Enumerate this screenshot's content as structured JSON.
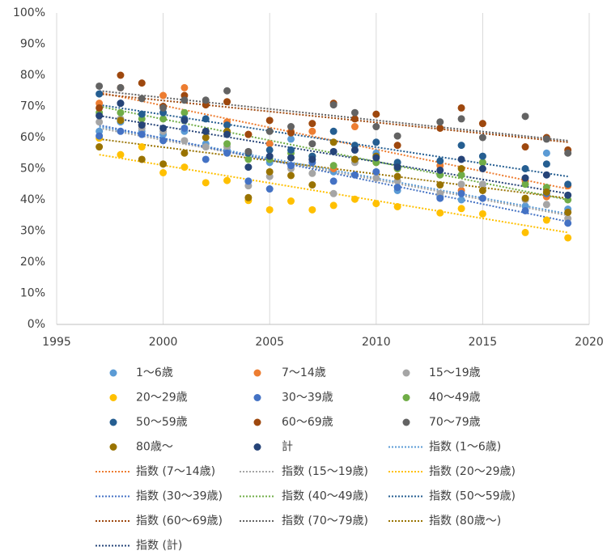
{
  "chart_data": {
    "type": "scatter",
    "x": [
      1997,
      1998,
      1999,
      2000,
      2001,
      2002,
      2003,
      2004,
      2005,
      2006,
      2007,
      2008,
      2009,
      2010,
      2011,
      2013,
      2014,
      2015,
      2017,
      2018,
      2019
    ],
    "xlim": [
      1995,
      2020
    ],
    "xticks": [
      1995,
      2000,
      2005,
      2010,
      2015,
      2020
    ],
    "ylim": [
      0,
      100
    ],
    "yticks": [
      {
        "value": 0,
        "label": "0%"
      },
      {
        "value": 10,
        "label": "10%"
      },
      {
        "value": 20,
        "label": "20%"
      },
      {
        "value": 30,
        "label": "30%"
      },
      {
        "value": 40,
        "label": "40%"
      },
      {
        "value": 50,
        "label": "50%"
      },
      {
        "value": 60,
        "label": "60%"
      },
      {
        "value": 70,
        "label": "70%"
      },
      {
        "value": 80,
        "label": "80%"
      },
      {
        "value": 90,
        "label": "90%"
      },
      {
        "value": 100,
        "label": "100%"
      }
    ],
    "grid": "x",
    "series": [
      {
        "name": "1～6歳",
        "color": "#5b9bd5",
        "values": [
          62,
          65,
          62,
          61,
          62,
          58,
          56,
          46,
          52,
          59.5,
          53,
          49,
          56,
          55,
          43,
          41,
          40,
          45,
          38,
          55,
          37
        ]
      },
      {
        "name": "7～14歳",
        "color": "#ed7d31",
        "values": [
          71,
          76,
          64,
          73.5,
          76,
          62,
          65,
          61,
          58,
          62,
          62,
          50,
          63.5,
          52,
          50,
          51,
          43,
          52,
          46,
          41,
          44.5
        ]
      },
      {
        "name": "15～19歳",
        "color": "#a5a5a5",
        "values": [
          65,
          66,
          63,
          62,
          59,
          57,
          57,
          44.5,
          47.5,
          50,
          48.5,
          42,
          52,
          47,
          46,
          42,
          45,
          45,
          40,
          38.5,
          34
        ]
      },
      {
        "name": "20～29歳",
        "color": "#ffc000",
        "values": [
          59.8,
          54.5,
          57,
          48.7,
          50.5,
          45.5,
          46.2,
          39.8,
          36.8,
          39.6,
          36.8,
          38.2,
          40.2,
          38.8,
          37.8,
          35.8,
          37.2,
          35.5,
          29.5,
          33.5,
          27.8
        ]
      },
      {
        "name": "30～39歳",
        "color": "#4472c4",
        "values": [
          60.5,
          62,
          61,
          59,
          63,
          53,
          55,
          46,
          43.5,
          51,
          52,
          46,
          48,
          49,
          44,
          40.5,
          42,
          40.5,
          36.5,
          42,
          32.5
        ]
      },
      {
        "name": "40～49歳",
        "color": "#70ad47",
        "values": [
          68,
          68,
          66,
          66,
          68,
          62,
          58,
          53,
          53,
          55,
          54,
          51,
          53,
          52,
          50,
          48,
          48,
          52,
          45,
          44,
          40
        ]
      },
      {
        "name": "50～59歳",
        "color": "#255e91",
        "values": [
          74,
          71,
          67.5,
          68,
          66,
          66,
          64,
          55,
          56,
          56,
          54,
          62,
          57.5,
          58.5,
          52,
          52.5,
          57.5,
          54,
          50,
          51.5,
          45
        ]
      },
      {
        "name": "60～69歳",
        "color": "#9e480e",
        "values": [
          69.5,
          80,
          77.5,
          70,
          73.5,
          70.5,
          71.5,
          61,
          65.5,
          61.5,
          64.5,
          71,
          66,
          67.5,
          57.5,
          63,
          69.5,
          64.5,
          57,
          60,
          56
        ]
      },
      {
        "name": "70～79歳",
        "color": "#636363",
        "values": [
          76.5,
          76,
          72.5,
          69.5,
          72,
          72,
          75,
          55.5,
          62,
          63.5,
          58,
          70.5,
          68,
          63.5,
          60.5,
          65,
          66,
          60,
          66.8,
          59.5,
          55
        ]
      },
      {
        "name": "80歳～",
        "color": "#997300",
        "values": [
          57,
          65.5,
          53,
          51.5,
          55,
          60,
          62,
          40.7,
          49,
          47.8,
          44.8,
          58.5,
          53,
          54,
          47.5,
          44.8,
          50,
          43,
          40.5,
          42.5,
          36
        ]
      },
      {
        "name": "計",
        "color": "#264478",
        "values": [
          67,
          71,
          64,
          63,
          65.5,
          62,
          61,
          50.5,
          54,
          53.5,
          53,
          55.5,
          56,
          53.5,
          50.5,
          49.5,
          53,
          50,
          47,
          48,
          41.5
        ]
      }
    ],
    "trendlines": [
      {
        "name": "指数 (1～6歳)",
        "color": "#5b9bd5",
        "values": [
          63.5,
          35.5
        ]
      },
      {
        "name": "指数 (7～14歳)",
        "color": "#ed7d31",
        "values": [
          74.5,
          43.5
        ]
      },
      {
        "name": "指数 (15～19歳)",
        "color": "#a5a5a5",
        "values": [
          63,
          35
        ]
      },
      {
        "name": "指数 (20～29歳)",
        "color": "#ffc000",
        "values": [
          54.5,
          29.5
        ]
      },
      {
        "name": "指数 (30～39歳)",
        "color": "#4472c4",
        "values": [
          64,
          33
        ]
      },
      {
        "name": "指数 (40～49歳)",
        "color": "#70ad47",
        "values": [
          70,
          40
        ]
      },
      {
        "name": "指数 (50～59歳)",
        "color": "#255e91",
        "values": [
          70.5,
          47.5
        ]
      },
      {
        "name": "指数 (60～69歳)",
        "color": "#9e480e",
        "values": [
          74,
          58.5
        ]
      },
      {
        "name": "指数 (70～79歳)",
        "color": "#636363",
        "values": [
          75,
          59
        ]
      },
      {
        "name": "指数 (80歳～)",
        "color": "#997300",
        "values": [
          59.5,
          40.5
        ]
      },
      {
        "name": "指数 (計)",
        "color": "#264478",
        "values": [
          67,
          42
        ]
      }
    ]
  }
}
